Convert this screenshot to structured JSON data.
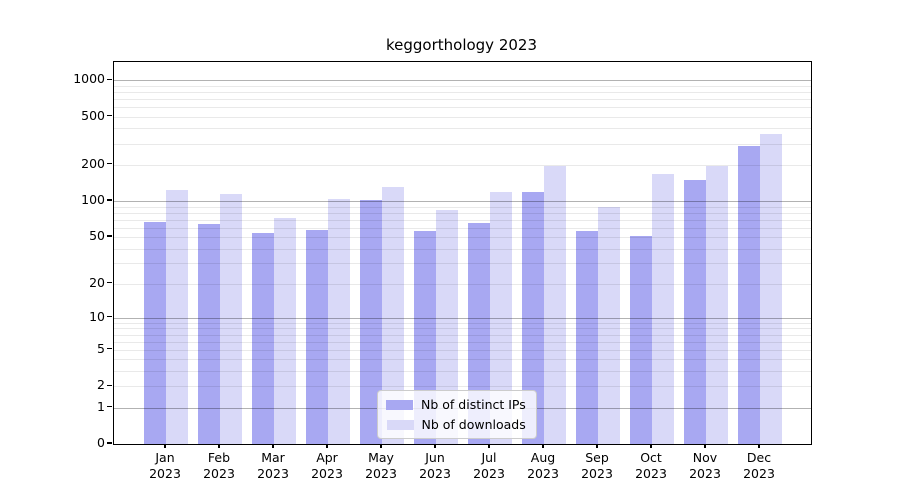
{
  "chart_data": {
    "type": "bar",
    "title": "keggorthology 2023",
    "year_label": "2023",
    "categories": [
      "Jan",
      "Feb",
      "Mar",
      "Apr",
      "May",
      "Jun",
      "Jul",
      "Aug",
      "Sep",
      "Oct",
      "Nov",
      "Dec"
    ],
    "series": [
      {
        "key": "distinct-ips",
        "name": "Nb of distinct IPs",
        "color": "#a8a8f2",
        "values": [
          67,
          64,
          54,
          57,
          102,
          56,
          65,
          119,
          56,
          51,
          151,
          285
        ]
      },
      {
        "key": "downloads",
        "name": "Nb of downloads",
        "color": "#d9d9f8",
        "values": [
          124,
          114,
          72,
          104,
          131,
          85,
          119,
          197,
          90,
          168,
          195,
          360
        ]
      }
    ],
    "y_ticks": [
      0,
      1,
      2,
      5,
      10,
      20,
      50,
      100,
      200,
      500,
      1000
    ],
    "ylim": [
      0,
      1417
    ],
    "yscale": "log1p",
    "grid": true,
    "legend_position": "lower center",
    "xlabel": "",
    "ylabel": ""
  },
  "colors": {
    "major_grid": "rgba(0,0,0,0.30)",
    "minor_grid": "rgba(0,0,0,0.085)",
    "axis": "#000000",
    "legend_border": "#cccccc",
    "legend_background": "rgba(255,255,255,0.8)"
  }
}
